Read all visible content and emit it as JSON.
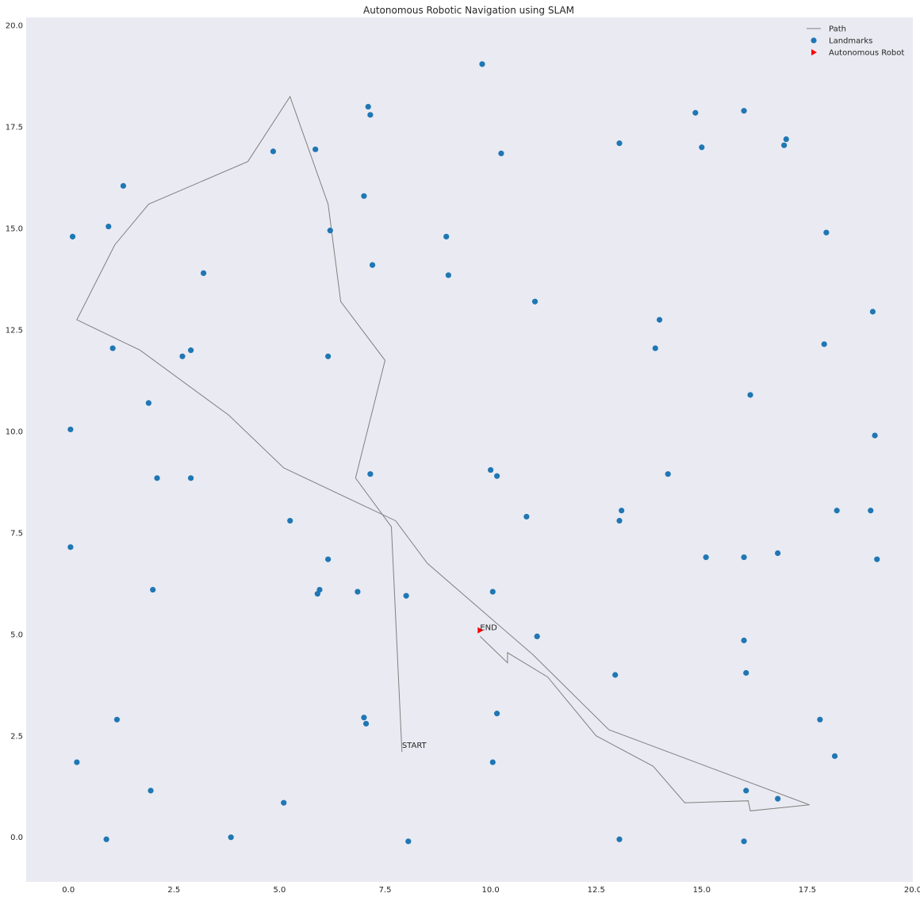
{
  "chart_data": {
    "type": "scatter",
    "title": "Autonomous Robotic Navigation using SLAM",
    "xlabel": "",
    "ylabel": "",
    "xlim": [
      -1,
      20
    ],
    "ylim": [
      -1.1,
      20.2
    ],
    "xticks": [
      0.0,
      2.5,
      5.0,
      7.5,
      10.0,
      12.5,
      15.0,
      17.5,
      20.0
    ],
    "yticks": [
      0.0,
      2.5,
      5.0,
      7.5,
      10.0,
      12.5,
      15.0,
      17.5,
      20.0
    ],
    "xtick_labels": [
      "0.0",
      "2.5",
      "5.0",
      "7.5",
      "10.0",
      "12.5",
      "15.0",
      "17.5",
      "20.0"
    ],
    "ytick_labels": [
      "0.0",
      "2.5",
      "5.0",
      "7.5",
      "10.0",
      "12.5",
      "15.0",
      "17.5",
      "20.0"
    ],
    "grid": false,
    "background": "#eaeaf2",
    "legend": {
      "placement": "top-right",
      "entries": [
        {
          "label": "Path",
          "marker": "line",
          "color": "#808080"
        },
        {
          "label": "Landmarks",
          "marker": "circle",
          "color": "#1f77b4"
        },
        {
          "label": "Autonomous Robot",
          "marker": "triangle-right",
          "color": "#ff0000"
        }
      ]
    },
    "series": [
      {
        "name": "Path",
        "kind": "line",
        "color": "#808080",
        "points": [
          [
            7.9,
            2.1
          ],
          [
            7.65,
            7.65
          ],
          [
            6.8,
            8.85
          ],
          [
            7.5,
            11.75
          ],
          [
            6.45,
            13.2
          ],
          [
            6.15,
            15.6
          ],
          [
            5.25,
            18.25
          ],
          [
            4.25,
            16.65
          ],
          [
            1.9,
            15.6
          ],
          [
            1.1,
            14.6
          ],
          [
            0.2,
            12.75
          ],
          [
            1.7,
            12.0
          ],
          [
            3.8,
            10.4
          ],
          [
            5.1,
            9.1
          ],
          [
            7.75,
            7.8
          ],
          [
            8.5,
            6.75
          ],
          [
            11.0,
            4.5
          ],
          [
            12.8,
            2.65
          ],
          [
            17.55,
            0.8
          ],
          [
            16.15,
            0.65
          ],
          [
            16.1,
            0.9
          ],
          [
            14.6,
            0.85
          ],
          [
            13.85,
            1.75
          ],
          [
            12.5,
            2.5
          ],
          [
            11.35,
            3.95
          ],
          [
            10.4,
            4.55
          ],
          [
            10.4,
            4.3
          ],
          [
            9.75,
            4.95
          ]
        ]
      },
      {
        "name": "Landmarks",
        "kind": "scatter",
        "color": "#1f77b4",
        "points": [
          [
            9.8,
            19.05
          ],
          [
            7.1,
            18.0
          ],
          [
            7.15,
            17.8
          ],
          [
            14.85,
            17.85
          ],
          [
            16.0,
            17.9
          ],
          [
            17.0,
            17.2
          ],
          [
            16.95,
            17.05
          ],
          [
            13.05,
            17.1
          ],
          [
            15.0,
            17.0
          ],
          [
            10.25,
            16.85
          ],
          [
            4.85,
            16.9
          ],
          [
            5.85,
            16.95
          ],
          [
            1.3,
            16.05
          ],
          [
            7.0,
            15.8
          ],
          [
            0.95,
            15.05
          ],
          [
            6.2,
            14.95
          ],
          [
            8.95,
            14.8
          ],
          [
            0.1,
            14.8
          ],
          [
            17.95,
            14.9
          ],
          [
            7.2,
            14.1
          ],
          [
            3.2,
            13.9
          ],
          [
            9.0,
            13.85
          ],
          [
            11.05,
            13.2
          ],
          [
            19.05,
            12.95
          ],
          [
            14.0,
            12.75
          ],
          [
            17.9,
            12.15
          ],
          [
            1.05,
            12.05
          ],
          [
            2.9,
            12.0
          ],
          [
            2.7,
            11.85
          ],
          [
            6.15,
            11.85
          ],
          [
            13.9,
            12.05
          ],
          [
            16.15,
            10.9
          ],
          [
            1.9,
            10.7
          ],
          [
            0.05,
            10.05
          ],
          [
            19.1,
            9.9
          ],
          [
            10.0,
            9.05
          ],
          [
            10.15,
            8.9
          ],
          [
            7.15,
            8.95
          ],
          [
            14.2,
            8.95
          ],
          [
            2.1,
            8.85
          ],
          [
            2.9,
            8.85
          ],
          [
            13.1,
            8.05
          ],
          [
            18.2,
            8.05
          ],
          [
            19.0,
            8.05
          ],
          [
            10.85,
            7.9
          ],
          [
            5.25,
            7.8
          ],
          [
            13.05,
            7.8
          ],
          [
            0.05,
            7.15
          ],
          [
            16.8,
            7.0
          ],
          [
            15.1,
            6.9
          ],
          [
            16.0,
            6.9
          ],
          [
            19.15,
            6.85
          ],
          [
            6.15,
            6.85
          ],
          [
            2.0,
            6.1
          ],
          [
            5.95,
            6.1
          ],
          [
            6.85,
            6.05
          ],
          [
            10.05,
            6.05
          ],
          [
            5.9,
            6.0
          ],
          [
            8.0,
            5.95
          ],
          [
            11.1,
            4.95
          ],
          [
            16.0,
            4.85
          ],
          [
            16.05,
            4.05
          ],
          [
            12.95,
            4.0
          ],
          [
            10.15,
            3.05
          ],
          [
            7.0,
            2.95
          ],
          [
            1.15,
            2.9
          ],
          [
            17.8,
            2.9
          ],
          [
            7.05,
            2.8
          ],
          [
            18.15,
            2.0
          ],
          [
            0.2,
            1.85
          ],
          [
            10.05,
            1.85
          ],
          [
            1.95,
            1.15
          ],
          [
            16.05,
            1.15
          ],
          [
            16.8,
            0.95
          ],
          [
            5.1,
            0.85
          ],
          [
            0.9,
            -0.05
          ],
          [
            3.85,
            0.0
          ],
          [
            8.05,
            -0.1
          ],
          [
            13.05,
            -0.05
          ],
          [
            16.0,
            -0.1
          ]
        ]
      },
      {
        "name": "Autonomous Robot",
        "kind": "marker",
        "color": "#ff0000",
        "points": [
          [
            9.75,
            5.1
          ]
        ]
      }
    ],
    "annotations": [
      {
        "text": "START",
        "x": 7.9,
        "y": 2.2
      },
      {
        "text": "END",
        "x": 9.75,
        "y": 5.1
      }
    ]
  }
}
